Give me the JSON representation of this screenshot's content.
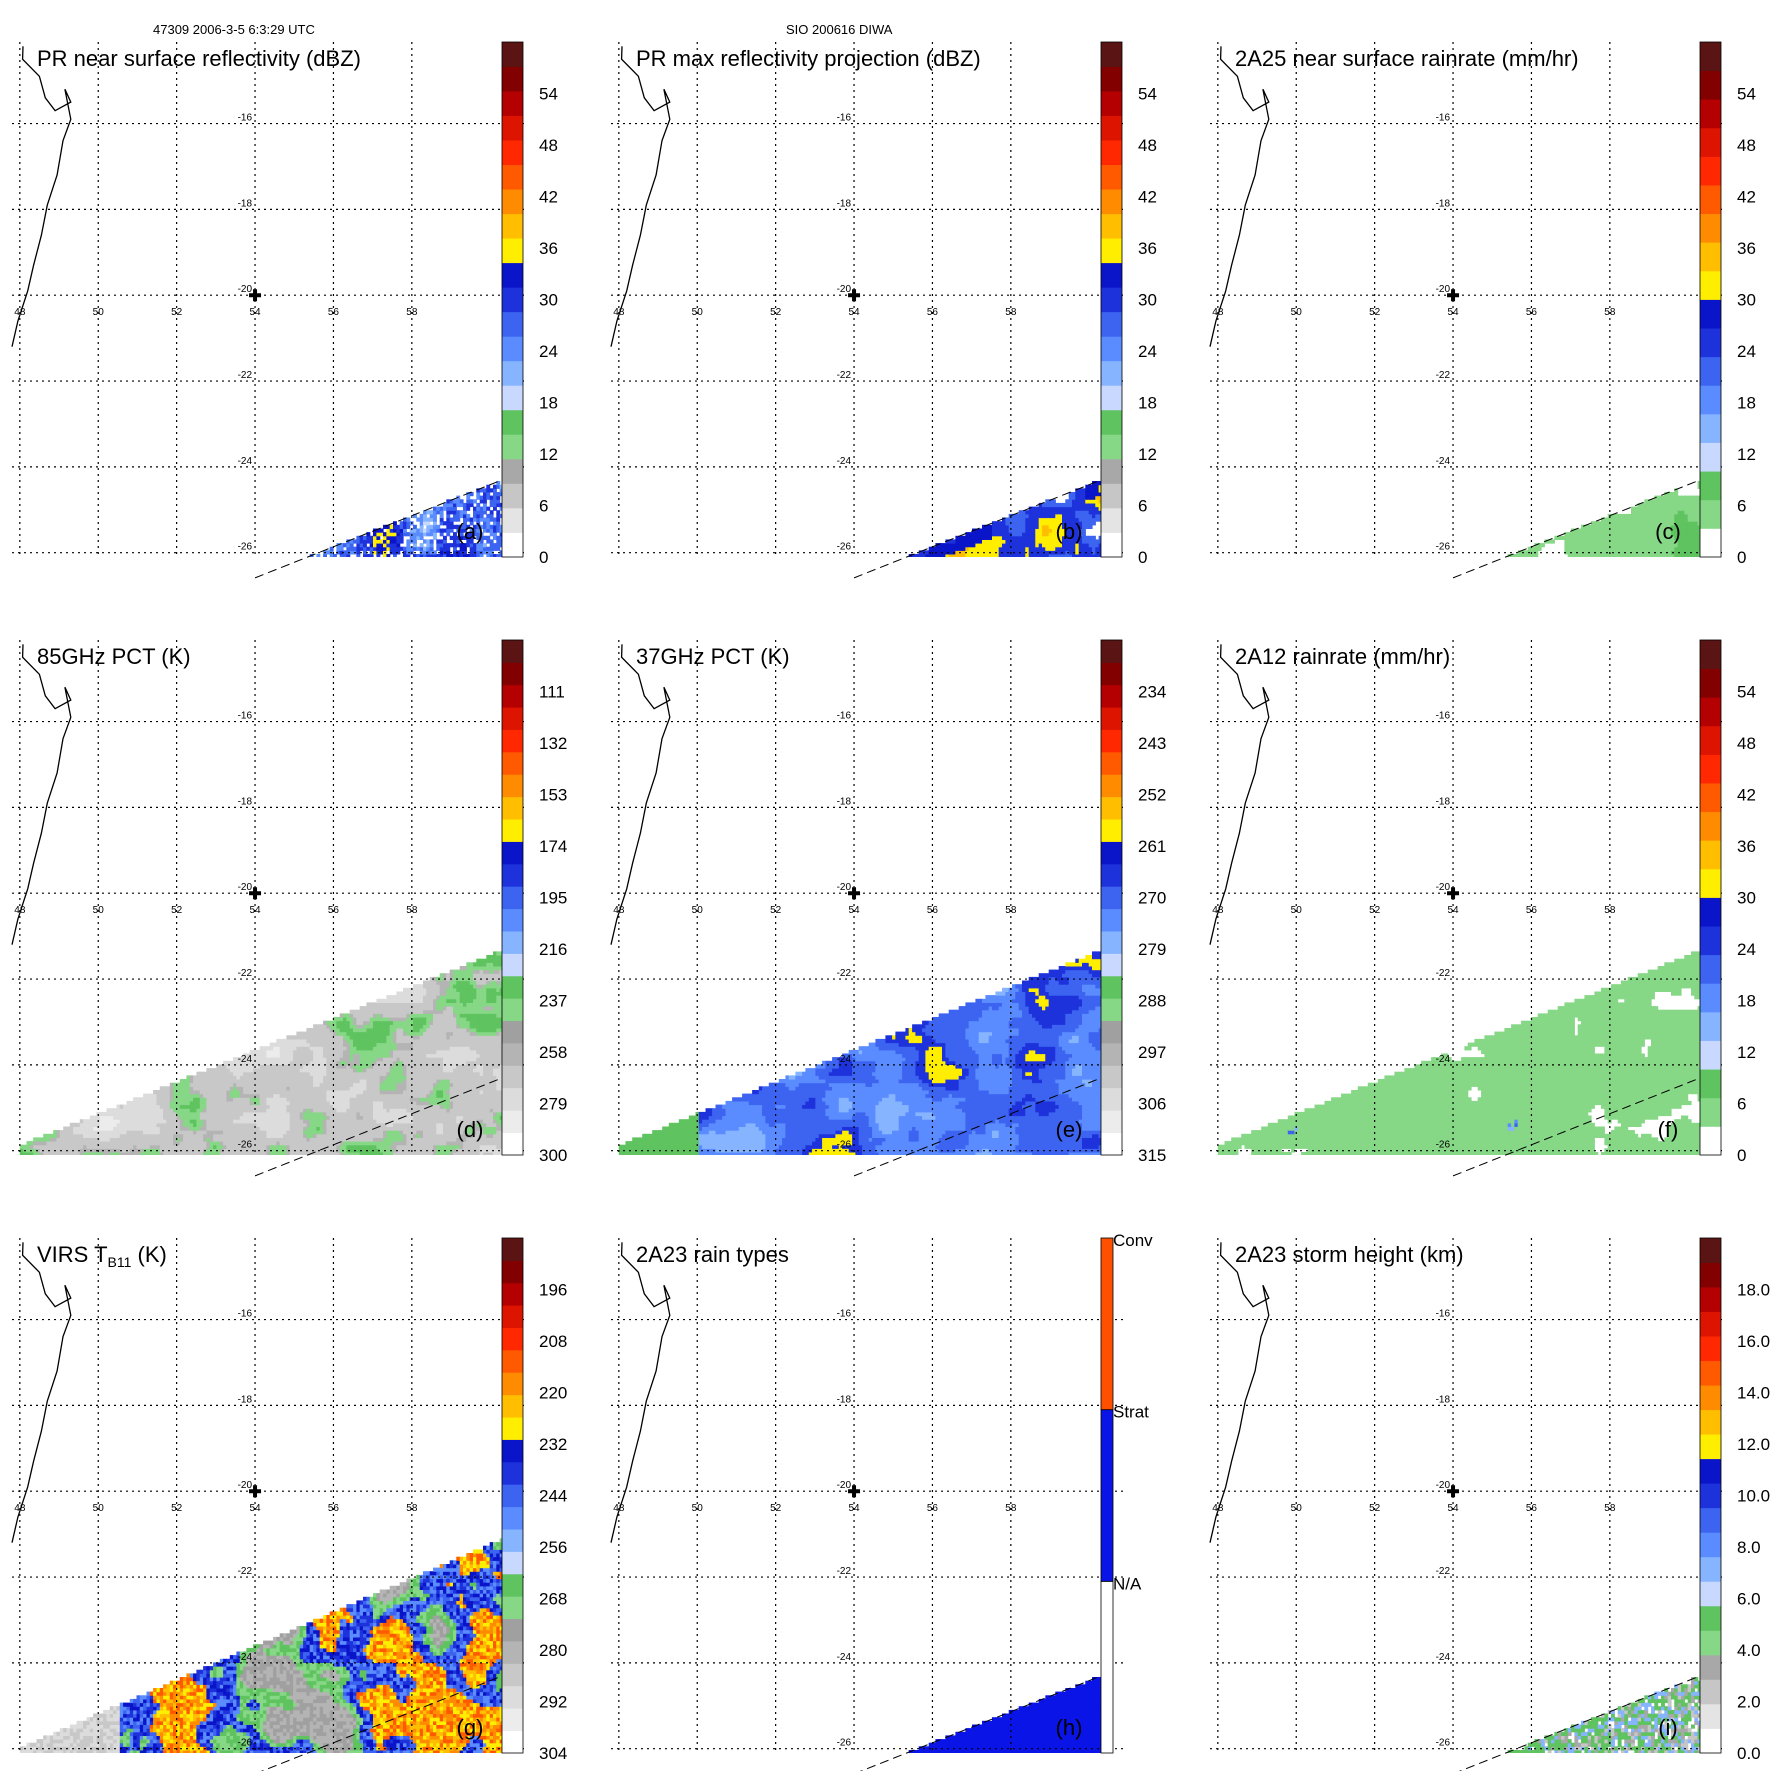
{
  "header": {
    "left": "47309 2006-3-5 6:3:29 UTC",
    "center": "SIO 200616 DIWA"
  },
  "center_marker": "plus-marker",
  "colors": {
    "coast": "#000000",
    "grid": "#000000",
    "swath_edge": "#000000"
  },
  "chart_data": [
    {
      "type": "heatmap",
      "id": "a",
      "title": "PR near surface reflectivity (dBZ)",
      "panel_label": "(a)",
      "swath": "pr",
      "field": "pr-near-surface",
      "xlim": [
        47.8,
        60.3
      ],
      "ylim": [
        -26.1,
        -14.1
      ],
      "lon_ticks": [
        "48",
        "50",
        "52",
        "54",
        "56",
        "58"
      ],
      "lat_ticks": [
        "-16",
        "-18",
        "-20",
        "-22",
        "-24",
        "-26"
      ],
      "colorbar": {
        "labels": [
          "0",
          "6",
          "12",
          "18",
          "24",
          "30",
          "36",
          "42",
          "48",
          "54"
        ],
        "colors": [
          "#ffffff",
          "#e4e4e4",
          "#c6c6c6",
          "#a8a8a8",
          "#86d786",
          "#5fc35f",
          "#c8d8ff",
          "#86b4ff",
          "#5a8cff",
          "#3c64f0",
          "#1e32dc",
          "#0a14c8",
          "#ffee00",
          "#ffbe00",
          "#ff8c00",
          "#ff5a00",
          "#ff2800",
          "#dc1400",
          "#b40000",
          "#820000",
          "#5a1414"
        ]
      }
    },
    {
      "type": "heatmap",
      "id": "b",
      "title": "PR max reflectivity projection (dBZ)",
      "panel_label": "(b)",
      "swath": "pr",
      "field": "pr-max",
      "xlim": [
        47.8,
        60.3
      ],
      "ylim": [
        -26.1,
        -14.1
      ],
      "lon_ticks": [
        "48",
        "50",
        "52",
        "54",
        "56",
        "58"
      ],
      "lat_ticks": [
        "-16",
        "-18",
        "-20",
        "-22",
        "-24",
        "-26"
      ],
      "colorbar": {
        "labels": [
          "0",
          "6",
          "12",
          "18",
          "24",
          "30",
          "36",
          "42",
          "48",
          "54"
        ],
        "colors": [
          "#ffffff",
          "#e4e4e4",
          "#c6c6c6",
          "#a8a8a8",
          "#86d786",
          "#5fc35f",
          "#c8d8ff",
          "#86b4ff",
          "#5a8cff",
          "#3c64f0",
          "#1e32dc",
          "#0a14c8",
          "#ffee00",
          "#ffbe00",
          "#ff8c00",
          "#ff5a00",
          "#ff2800",
          "#dc1400",
          "#b40000",
          "#820000",
          "#5a1414"
        ]
      }
    },
    {
      "type": "heatmap",
      "id": "c",
      "title": "2A25 near surface rainrate (mm/hr)",
      "panel_label": "(c)",
      "swath": "pr",
      "field": "rain-2a25",
      "xlim": [
        47.8,
        60.3
      ],
      "ylim": [
        -26.1,
        -14.1
      ],
      "lon_ticks": [
        "48",
        "50",
        "52",
        "54",
        "56",
        "58"
      ],
      "lat_ticks": [
        "-16",
        "-18",
        "-20",
        "-22",
        "-24",
        "-26"
      ],
      "colorbar": {
        "labels": [
          "0",
          "6",
          "12",
          "18",
          "24",
          "30",
          "36",
          "42",
          "48",
          "54"
        ],
        "colors": [
          "#ffffff",
          "#86d786",
          "#5fc35f",
          "#c8d8ff",
          "#86b4ff",
          "#5a8cff",
          "#3c64f0",
          "#1e32dc",
          "#0a14c8",
          "#ffee00",
          "#ffbe00",
          "#ff8c00",
          "#ff5a00",
          "#ff2800",
          "#dc1400",
          "#b40000",
          "#820000",
          "#5a1414"
        ]
      }
    },
    {
      "type": "heatmap",
      "id": "d",
      "title": "85GHz PCT (K)",
      "panel_label": "(d)",
      "swath": "tmi",
      "field": "pct85",
      "xlim": [
        47.8,
        60.3
      ],
      "ylim": [
        -26.1,
        -14.1
      ],
      "lon_ticks": [
        "48",
        "50",
        "52",
        "54",
        "56",
        "58"
      ],
      "lat_ticks": [
        "-16",
        "-18",
        "-20",
        "-22",
        "-24",
        "-26"
      ],
      "colorbar": {
        "labels": [
          "300",
          "279",
          "258",
          "237",
          "216",
          "195",
          "174",
          "153",
          "132",
          "111"
        ],
        "colors": [
          "#ffffff",
          "#ececec",
          "#dcdcdc",
          "#c8c8c8",
          "#b4b4b4",
          "#a0a0a0",
          "#86d786",
          "#5fc35f",
          "#c8d8ff",
          "#86b4ff",
          "#5a8cff",
          "#3c64f0",
          "#1e32dc",
          "#0a14c8",
          "#ffee00",
          "#ffbe00",
          "#ff8c00",
          "#ff5a00",
          "#ff2800",
          "#dc1400",
          "#b40000",
          "#820000",
          "#5a1414"
        ]
      }
    },
    {
      "type": "heatmap",
      "id": "e",
      "title": "37GHz PCT (K)",
      "panel_label": "(e)",
      "swath": "tmi",
      "field": "pct37",
      "xlim": [
        47.8,
        60.3
      ],
      "ylim": [
        -26.1,
        -14.1
      ],
      "lon_ticks": [
        "48",
        "50",
        "52",
        "54",
        "56",
        "58"
      ],
      "lat_ticks": [
        "-16",
        "-18",
        "-20",
        "-22",
        "-24",
        "-26"
      ],
      "colorbar": {
        "labels": [
          "315",
          "306",
          "297",
          "288",
          "279",
          "270",
          "261",
          "252",
          "243",
          "234"
        ],
        "colors": [
          "#ffffff",
          "#ececec",
          "#dcdcdc",
          "#c8c8c8",
          "#b4b4b4",
          "#a0a0a0",
          "#86d786",
          "#5fc35f",
          "#c8d8ff",
          "#86b4ff",
          "#5a8cff",
          "#3c64f0",
          "#1e32dc",
          "#0a14c8",
          "#ffee00",
          "#ffbe00",
          "#ff8c00",
          "#ff5a00",
          "#ff2800",
          "#dc1400",
          "#b40000",
          "#820000",
          "#5a1414"
        ]
      }
    },
    {
      "type": "heatmap",
      "id": "f",
      "title": "2A12 rainrate (mm/hr)",
      "panel_label": "(f)",
      "swath": "tmi",
      "field": "rain-2a12",
      "xlim": [
        47.8,
        60.3
      ],
      "ylim": [
        -26.1,
        -14.1
      ],
      "lon_ticks": [
        "48",
        "50",
        "52",
        "54",
        "56",
        "58"
      ],
      "lat_ticks": [
        "-16",
        "-18",
        "-20",
        "-22",
        "-24",
        "-26"
      ],
      "colorbar": {
        "labels": [
          "0",
          "6",
          "12",
          "18",
          "24",
          "30",
          "36",
          "42",
          "48",
          "54"
        ],
        "colors": [
          "#ffffff",
          "#86d786",
          "#5fc35f",
          "#c8d8ff",
          "#86b4ff",
          "#5a8cff",
          "#3c64f0",
          "#1e32dc",
          "#0a14c8",
          "#ffee00",
          "#ffbe00",
          "#ff8c00",
          "#ff5a00",
          "#ff2800",
          "#dc1400",
          "#b40000",
          "#820000",
          "#5a1414"
        ]
      }
    },
    {
      "type": "heatmap",
      "id": "g",
      "title": "VIRS T",
      "title_subscript": "B11",
      "title_suffix": " (K)",
      "panel_label": "(g)",
      "swath": "virs",
      "field": "virs",
      "xlim": [
        47.8,
        60.3
      ],
      "ylim": [
        -26.1,
        -14.1
      ],
      "lon_ticks": [
        "48",
        "50",
        "52",
        "54",
        "56",
        "58"
      ],
      "lat_ticks": [
        "-16",
        "-18",
        "-20",
        "-22",
        "-24",
        "-26"
      ],
      "colorbar": {
        "labels": [
          "304",
          "292",
          "280",
          "268",
          "256",
          "244",
          "232",
          "220",
          "208",
          "196"
        ],
        "colors": [
          "#ffffff",
          "#ececec",
          "#dcdcdc",
          "#c8c8c8",
          "#b4b4b4",
          "#a0a0a0",
          "#86d786",
          "#5fc35f",
          "#c8d8ff",
          "#86b4ff",
          "#5a8cff",
          "#3c64f0",
          "#1e32dc",
          "#0a14c8",
          "#ffee00",
          "#ffbe00",
          "#ff8c00",
          "#ff5a00",
          "#ff2800",
          "#dc1400",
          "#b40000",
          "#820000",
          "#5a1414"
        ]
      }
    },
    {
      "type": "heatmap",
      "id": "h",
      "title": "2A23 rain types",
      "panel_label": "(h)",
      "swath": "pr",
      "field": "raintype",
      "xlim": [
        47.8,
        60.3
      ],
      "ylim": [
        -26.1,
        -14.1
      ],
      "lon_ticks": [
        "48",
        "50",
        "52",
        "54",
        "56",
        "58"
      ],
      "lat_ticks": [
        "-16",
        "-18",
        "-20",
        "-22",
        "-24",
        "-26"
      ],
      "colorbar": {
        "categorical": true,
        "labels": [
          "N/A",
          "Strat",
          "Conv"
        ],
        "colors": [
          "#ffffff",
          "#0a14e6",
          "#ff5000"
        ]
      }
    },
    {
      "type": "heatmap",
      "id": "i",
      "title": "2A23 storm height (km)",
      "panel_label": "(i)",
      "swath": "pr",
      "field": "stormheight",
      "xlim": [
        47.8,
        60.3
      ],
      "ylim": [
        -26.1,
        -14.1
      ],
      "lon_ticks": [
        "48",
        "50",
        "52",
        "54",
        "56",
        "58"
      ],
      "lat_ticks": [
        "-16",
        "-18",
        "-20",
        "-22",
        "-24",
        "-26"
      ],
      "colorbar": {
        "labels": [
          "0.0",
          "2.0",
          "4.0",
          "6.0",
          "8.0",
          "10.0",
          "12.0",
          "14.0",
          "16.0",
          "18.0"
        ],
        "colors": [
          "#ffffff",
          "#e4e4e4",
          "#c6c6c6",
          "#a8a8a8",
          "#86d786",
          "#5fc35f",
          "#c8d8ff",
          "#86b4ff",
          "#5a8cff",
          "#3c64f0",
          "#1e32dc",
          "#0a14c8",
          "#ffee00",
          "#ffbe00",
          "#ff8c00",
          "#ff5a00",
          "#ff2800",
          "#dc1400",
          "#b40000",
          "#820000",
          "#5a1414"
        ]
      }
    }
  ]
}
